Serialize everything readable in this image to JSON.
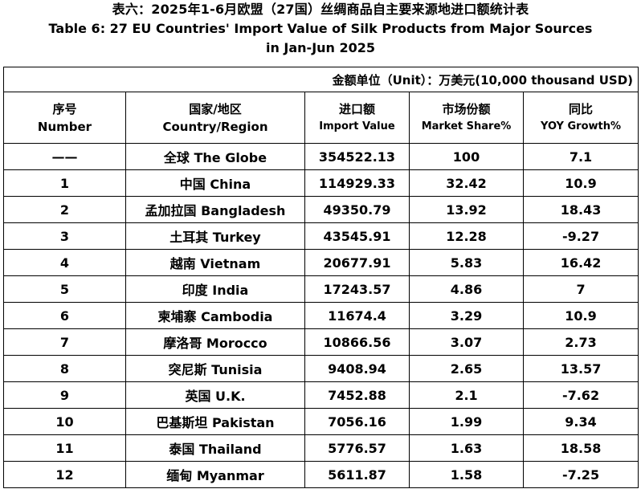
{
  "title": {
    "cn": "表六：2025年1-6月欧盟（27国）丝绸商品自主要来源地进口额统计表",
    "en_line1": "Table 6: 27 EU Countries' Import Value of Silk Products from Major Sources",
    "en_line2": "in Jan-Jun 2025"
  },
  "unit": "金额单位（Unit）：万美元(10,000 thousand USD)",
  "columns": [
    {
      "cn": "序号",
      "en": "Number"
    },
    {
      "cn": "国家/地区",
      "en": "Country/Region"
    },
    {
      "cn": "进口额",
      "en": "Import Value"
    },
    {
      "cn": "市场份额",
      "en": "Market Share%"
    },
    {
      "cn": "同比",
      "en": "YOY Growth%"
    }
  ],
  "rows": [
    {
      "number": "——",
      "country": "全球 The Globe",
      "import_value": "354522.13",
      "market_share": "100",
      "yoy_growth": "7.1"
    },
    {
      "number": "1",
      "country": "中国 China",
      "import_value": "114929.33",
      "market_share": "32.42",
      "yoy_growth": "10.9"
    },
    {
      "number": "2",
      "country": "孟加拉国 Bangladesh",
      "import_value": "49350.79",
      "market_share": "13.92",
      "yoy_growth": "18.43"
    },
    {
      "number": "3",
      "country": "土耳其 Turkey",
      "import_value": "43545.91",
      "market_share": "12.28",
      "yoy_growth": "-9.27"
    },
    {
      "number": "4",
      "country": "越南 Vietnam",
      "import_value": "20677.91",
      "market_share": "5.83",
      "yoy_growth": "16.42"
    },
    {
      "number": "5",
      "country": "印度 India",
      "import_value": "17243.57",
      "market_share": "4.86",
      "yoy_growth": "7"
    },
    {
      "number": "6",
      "country": "柬埔寨 Cambodia",
      "import_value": "11674.4",
      "market_share": "3.29",
      "yoy_growth": "10.9"
    },
    {
      "number": "7",
      "country": "摩洛哥 Morocco",
      "import_value": "10866.56",
      "market_share": "3.07",
      "yoy_growth": "2.73"
    },
    {
      "number": "8",
      "country": "突尼斯 Tunisia",
      "import_value": "9408.94",
      "market_share": "2.65",
      "yoy_growth": "13.57"
    },
    {
      "number": "9",
      "country": "英国 U.K.",
      "import_value": "7452.88",
      "market_share": "2.1",
      "yoy_growth": "-7.62"
    },
    {
      "number": "10",
      "country": "巴基斯坦 Pakistan",
      "import_value": "7056.16",
      "market_share": "1.99",
      "yoy_growth": "9.34"
    },
    {
      "number": "11",
      "country": "泰国 Thailand",
      "import_value": "5776.57",
      "market_share": "1.63",
      "yoy_growth": "18.58"
    },
    {
      "number": "12",
      "country": "缅甸 Myanmar",
      "import_value": "5611.87",
      "market_share": "1.58",
      "yoy_growth": "-7.25"
    }
  ]
}
